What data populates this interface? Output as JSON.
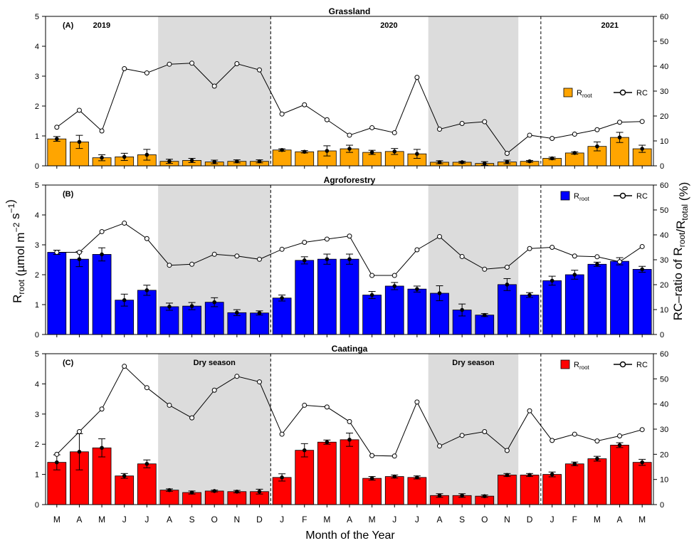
{
  "figure": {
    "xlabel": "Month of the Year",
    "ylabel_left": "R_root (µmol m^-2 s^-1)",
    "ylabel_right": "RC–ratio of R_root/R_total (%)",
    "months": [
      "M",
      "A",
      "M",
      "J",
      "J",
      "A",
      "S",
      "O",
      "N",
      "D",
      "J",
      "F",
      "M",
      "A",
      "M",
      "J",
      "J",
      "A",
      "S",
      "O",
      "N",
      "D",
      "J",
      "F",
      "M",
      "A",
      "M"
    ],
    "years": [
      "2019",
      "2020",
      "2021"
    ],
    "dry_season_label": "Dry season",
    "dry_season_indices": [
      [
        5,
        9
      ],
      [
        17,
        20
      ]
    ],
    "year_boundaries_after_index": [
      9,
      21
    ],
    "left_axis": {
      "min": 0,
      "max": 5,
      "ticks": [
        0,
        1,
        2,
        3,
        4,
        5
      ]
    },
    "right_axis": {
      "min": 0,
      "max": 60,
      "ticks": [
        0,
        10,
        20,
        30,
        40,
        50,
        60
      ]
    },
    "legend_rroot_main": "R",
    "legend_rroot_sub": "root",
    "legend_rc": "RC"
  },
  "chart_data": [
    {
      "type": "bar",
      "panel": "(A)",
      "title": "Grassland",
      "color": "#FFA500",
      "series": [
        {
          "name": "Rroot",
          "values": [
            0.9,
            0.8,
            0.27,
            0.3,
            0.37,
            0.15,
            0.18,
            0.13,
            0.15,
            0.15,
            0.53,
            0.47,
            0.5,
            0.57,
            0.45,
            0.48,
            0.4,
            0.12,
            0.12,
            0.08,
            0.13,
            0.15,
            0.25,
            0.43,
            0.65,
            0.95,
            0.57
          ],
          "errors": [
            0.08,
            0.22,
            0.1,
            0.12,
            0.18,
            0.07,
            0.07,
            0.06,
            0.05,
            0.05,
            0.04,
            0.04,
            0.17,
            0.12,
            0.07,
            0.1,
            0.15,
            0.05,
            0.03,
            0.06,
            0.06,
            0.03,
            0.04,
            0.04,
            0.15,
            0.17,
            0.12
          ]
        },
        {
          "name": "RC",
          "values": [
            15.5,
            22.3,
            14.0,
            39.0,
            37.3,
            40.8,
            41.2,
            32.0,
            41.0,
            38.5,
            20.8,
            24.5,
            18.5,
            12.3,
            15.3,
            13.3,
            35.5,
            14.7,
            17.0,
            17.7,
            5.0,
            12.3,
            11.0,
            12.7,
            14.5,
            17.5,
            17.8
          ]
        }
      ]
    },
    {
      "type": "bar",
      "panel": "(B)",
      "title": "Agroforestry",
      "color": "#0000FF",
      "series": [
        {
          "name": "Rroot",
          "values": [
            2.75,
            2.52,
            2.68,
            1.15,
            1.48,
            0.93,
            0.95,
            1.08,
            0.73,
            0.72,
            1.22,
            2.48,
            2.52,
            2.52,
            1.32,
            1.62,
            1.52,
            1.38,
            0.82,
            0.65,
            1.67,
            1.32,
            1.8,
            2.0,
            2.35,
            2.45,
            2.18
          ],
          "errors": [
            0.07,
            0.25,
            0.22,
            0.2,
            0.17,
            0.12,
            0.12,
            0.15,
            0.1,
            0.07,
            0.1,
            0.12,
            0.17,
            0.17,
            0.12,
            0.12,
            0.1,
            0.25,
            0.2,
            0.05,
            0.2,
            0.08,
            0.15,
            0.15,
            0.07,
            0.12,
            0.1
          ]
        },
        {
          "name": "RC",
          "values": [
            33.0,
            33.0,
            41.3,
            44.7,
            38.5,
            27.8,
            28.2,
            32.2,
            31.5,
            30.2,
            34.2,
            37.0,
            38.3,
            39.5,
            23.7,
            23.7,
            34.0,
            39.3,
            31.3,
            26.2,
            27.0,
            34.5,
            35.0,
            31.5,
            31.2,
            29.2,
            35.3
          ]
        }
      ]
    },
    {
      "type": "bar",
      "panel": "(C)",
      "title": "Caatinga",
      "color": "#FF0000",
      "series": [
        {
          "name": "Rroot",
          "values": [
            1.4,
            1.75,
            1.88,
            0.95,
            1.35,
            0.48,
            0.4,
            0.45,
            0.43,
            0.43,
            0.9,
            1.8,
            2.07,
            2.15,
            0.87,
            0.93,
            0.9,
            0.3,
            0.3,
            0.28,
            0.98,
            0.98,
            1.0,
            1.35,
            1.52,
            1.97,
            1.4
          ],
          "errors": [
            0.25,
            0.6,
            0.3,
            0.08,
            0.13,
            0.04,
            0.05,
            0.03,
            0.04,
            0.08,
            0.12,
            0.22,
            0.07,
            0.22,
            0.06,
            0.05,
            0.05,
            0.06,
            0.06,
            0.04,
            0.05,
            0.05,
            0.08,
            0.06,
            0.08,
            0.08,
            0.1
          ]
        },
        {
          "name": "RC",
          "values": [
            20.0,
            29.0,
            38.0,
            55.0,
            46.5,
            39.5,
            34.5,
            45.5,
            51.0,
            48.8,
            28.0,
            39.5,
            38.8,
            33.0,
            19.5,
            19.3,
            40.8,
            23.3,
            27.5,
            29.0,
            21.5,
            37.3,
            25.5,
            28.0,
            25.3,
            27.3,
            29.8
          ]
        }
      ]
    }
  ]
}
